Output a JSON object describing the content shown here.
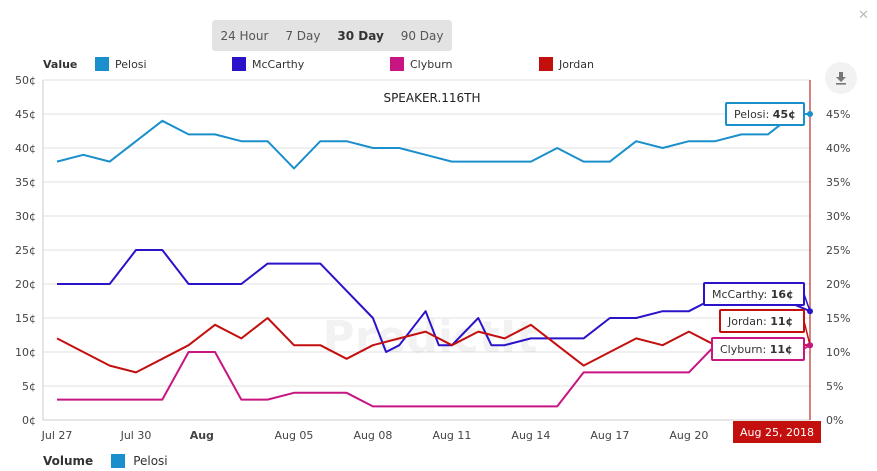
{
  "tabs": [
    {
      "label": "24 Hour",
      "active": false
    },
    {
      "label": "7 Day",
      "active": false
    },
    {
      "label": "30 Day",
      "active": true
    },
    {
      "label": "90 Day",
      "active": false
    }
  ],
  "legend_title": "Value",
  "volume_label": "Volume",
  "volume_series": {
    "name": "Pelosi",
    "color": "#1a8fcc"
  },
  "close_icon": "close-icon",
  "download_icon": "download-icon",
  "chart_data": {
    "type": "line",
    "title": "SPEAKER.116TH",
    "watermark": "PredictIt",
    "xlabel": "",
    "ylabel": "",
    "ylim": [
      0,
      50
    ],
    "y_ticks": [
      "0¢",
      "5¢",
      "10¢",
      "15¢",
      "20¢",
      "25¢",
      "30¢",
      "35¢",
      "40¢",
      "45¢",
      "50¢"
    ],
    "y2_ticks": [
      "0%",
      "5%",
      "10%",
      "15%",
      "20%",
      "25%",
      "30%",
      "35%",
      "40%",
      "45%"
    ],
    "x_ticks": [
      {
        "label": "Jul 27",
        "day": 0,
        "bold": false
      },
      {
        "label": "Jul 30",
        "day": 3,
        "bold": false
      },
      {
        "label": "Aug",
        "day": 5.5,
        "bold": true
      },
      {
        "label": "Aug 05",
        "day": 9,
        "bold": false
      },
      {
        "label": "Aug 08",
        "day": 12,
        "bold": false
      },
      {
        "label": "Aug 11",
        "day": 15,
        "bold": false
      },
      {
        "label": "Aug 14",
        "day": 18,
        "bold": false
      },
      {
        "label": "Aug 17",
        "day": 21,
        "bold": false
      },
      {
        "label": "Aug 20",
        "day": 24,
        "bold": false
      }
    ],
    "x_range_days": [
      0,
      28.6
    ],
    "current_date": "Aug 25, 2018",
    "current_day": 28.6,
    "series": [
      {
        "name": "Pelosi",
        "color": "#1a8fcc",
        "current": "45¢",
        "current_value": 45,
        "x": [
          0,
          1,
          2,
          3,
          4,
          5,
          6,
          7,
          8,
          9,
          10,
          11,
          12,
          13,
          14,
          15,
          16,
          17,
          18,
          19,
          20,
          21,
          22,
          23,
          24,
          25,
          26,
          27,
          28,
          28.6
        ],
        "values": [
          38,
          39,
          38,
          41,
          44,
          42,
          42,
          41,
          41,
          37,
          41,
          41,
          40,
          40,
          39,
          38,
          38,
          38,
          38,
          40,
          38,
          38,
          41,
          40,
          41,
          41,
          42,
          42,
          45,
          45
        ]
      },
      {
        "name": "McCarthy",
        "color": "#2a13c9",
        "current": "16¢",
        "current_value": 16,
        "x": [
          0,
          1,
          2,
          3,
          4,
          5,
          6,
          7,
          8,
          9,
          10,
          11,
          12,
          12.5,
          13,
          14,
          14.5,
          15,
          16,
          16.5,
          17,
          18,
          19,
          20,
          21,
          22,
          23,
          24,
          25,
          26,
          27,
          28,
          28.6
        ],
        "values": [
          20,
          20,
          20,
          25,
          25,
          20,
          20,
          20,
          23,
          23,
          23,
          19,
          15,
          10,
          11,
          16,
          11,
          11,
          15,
          11,
          11,
          12,
          12,
          12,
          15,
          15,
          16,
          16,
          18,
          18,
          18,
          17,
          16
        ]
      },
      {
        "name": "Clyburn",
        "color": "#c71582",
        "current": "11¢",
        "current_value": 11,
        "x": [
          0,
          1,
          2,
          3,
          4,
          5,
          6,
          7,
          8,
          9,
          10,
          11,
          12,
          13,
          14,
          15,
          16,
          17,
          18,
          19,
          20,
          21,
          22,
          23,
          24,
          25,
          26,
          27,
          28,
          28.6
        ],
        "values": [
          3,
          3,
          3,
          3,
          3,
          10,
          10,
          3,
          3,
          4,
          4,
          4,
          2,
          2,
          2,
          2,
          2,
          2,
          2,
          2,
          7,
          7,
          7,
          7,
          7,
          11,
          11,
          11,
          11,
          11
        ]
      },
      {
        "name": "Jordan",
        "color": "#c40f0f",
        "current": "11¢",
        "current_value": 11,
        "x": [
          0,
          1,
          2,
          3,
          4,
          5,
          6,
          7,
          8,
          9,
          10,
          11,
          12,
          13,
          14,
          15,
          16,
          17,
          18,
          19,
          20,
          21,
          22,
          23,
          24,
          25,
          26,
          27,
          28,
          28.6
        ],
        "values": [
          12,
          10,
          8,
          7,
          9,
          11,
          14,
          12,
          15,
          11,
          11,
          9,
          11,
          12,
          13,
          11,
          13,
          12,
          14,
          11,
          8,
          10,
          12,
          11,
          13,
          11,
          10,
          11,
          11,
          11
        ]
      }
    ]
  }
}
